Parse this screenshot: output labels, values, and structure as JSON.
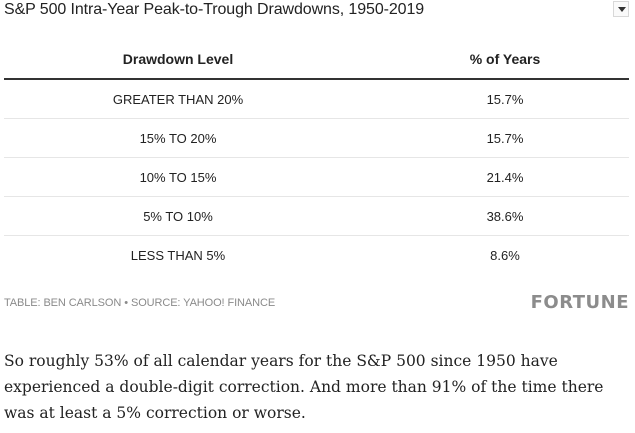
{
  "header": {
    "title": "S&P 500 Intra-Year Peak-to-Trough Drawdowns, 1950-2019",
    "dropdown_icon": "chevron-down-icon"
  },
  "table": {
    "columns": [
      "Drawdown Level",
      "% of Years"
    ],
    "rows": [
      [
        "GREATER THAN 20%",
        "15.7%"
      ],
      [
        "15% TO 20%",
        "15.7%"
      ],
      [
        "10% TO 15%",
        "21.4%"
      ],
      [
        "5% TO 10%",
        "38.6%"
      ],
      [
        "LESS THAN 5%",
        "8.6%"
      ]
    ]
  },
  "footer": {
    "table_credit": "TABLE: BEN CARLSON",
    "separator": "•",
    "source": "SOURCE: YAHOO! FINANCE",
    "brand": "FORTUNE"
  },
  "article": {
    "paragraph": "So roughly 53% of all calendar years for the S&P 500 since 1950 have experienced a double-digit correction. And more than 91% of the time there was at least a 5% correction or worse."
  },
  "colors": {
    "text": "#222222",
    "muted": "#8a8a8a",
    "rule": "#333333",
    "row_divider": "#e6e6e6"
  }
}
